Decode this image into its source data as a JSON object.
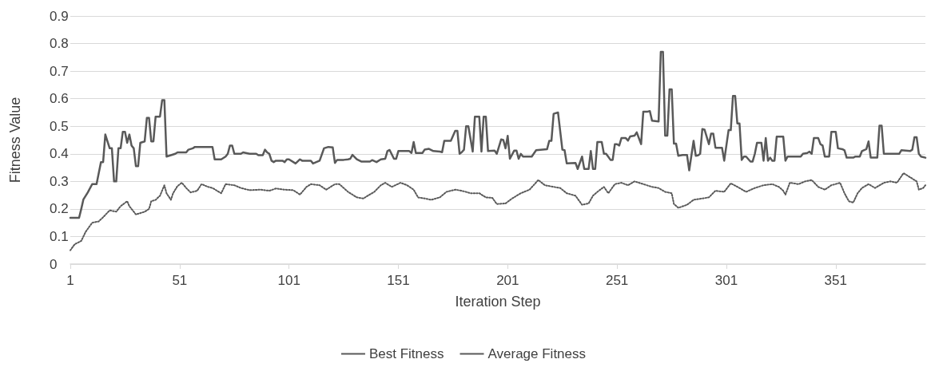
{
  "chart_data": {
    "type": "line",
    "xlabel": "Iteration Step",
    "ylabel": "Fitness Value",
    "xlim": [
      1,
      392
    ],
    "xticks": [
      1,
      51,
      101,
      151,
      201,
      251,
      301,
      351
    ],
    "ylim": [
      0,
      0.9
    ],
    "yticks": [
      0,
      0.1,
      0.2,
      0.3,
      0.4,
      0.5,
      0.6,
      0.7,
      0.8,
      0.9
    ],
    "grid": "y",
    "legend": "bottom",
    "marker": "none",
    "series": [
      {
        "name": "Best Fitness",
        "color": "#595959",
        "line_style": "solid",
        "x": [
          1,
          5,
          6,
          7,
          9,
          11,
          13,
          15,
          16,
          17,
          19,
          20,
          21,
          22,
          23,
          24,
          25,
          26,
          27,
          28,
          29,
          30,
          31,
          32,
          33,
          35,
          36,
          37,
          38,
          39,
          40,
          42,
          43,
          44,
          45,
          47,
          49,
          50,
          54,
          55,
          57,
          58,
          66,
          67,
          70,
          72,
          73,
          74,
          75,
          76,
          79,
          80,
          83,
          86,
          87,
          89,
          90,
          91,
          92,
          93,
          94,
          95,
          98,
          99,
          100,
          101,
          104,
          106,
          107,
          111,
          112,
          115,
          117,
          119,
          121,
          122,
          123,
          126,
          128,
          129,
          130,
          132,
          134,
          138,
          139,
          141,
          143,
          145,
          146,
          147,
          149,
          150,
          151,
          156,
          157,
          158,
          159,
          162,
          163,
          165,
          167,
          170,
          171,
          172,
          175,
          177,
          178,
          179,
          180,
          181,
          182,
          183,
          185,
          186,
          188,
          189,
          190,
          191,
          192,
          195,
          196,
          198,
          199,
          200,
          201,
          202,
          204,
          205,
          206,
          207,
          208,
          212,
          214,
          219,
          220,
          221,
          222,
          224,
          226,
          227,
          228,
          232,
          233,
          235,
          236,
          238,
          239,
          240,
          241,
          242,
          244,
          245,
          246,
          248,
          249,
          250,
          251,
          252,
          253,
          255,
          256,
          257,
          259,
          260,
          262,
          263,
          265,
          266,
          267,
          270,
          271,
          272,
          273,
          274,
          275,
          276,
          277,
          278,
          279,
          281,
          283,
          284,
          286,
          287,
          288,
          289,
          290,
          291,
          293,
          294,
          295,
          296,
          299,
          300,
          302,
          303,
          304,
          305,
          306,
          307,
          308,
          309,
          310,
          312,
          313,
          314,
          315,
          317,
          318,
          319,
          320,
          321,
          322,
          323,
          324,
          327,
          328,
          329,
          335,
          336,
          338,
          339,
          340,
          341,
          343,
          344,
          345,
          346,
          348,
          349,
          351,
          352,
          354,
          355,
          356,
          359,
          360,
          362,
          363,
          365,
          366,
          367,
          370,
          371,
          372,
          373,
          380,
          381,
          385,
          386,
          387,
          388,
          389,
          390,
          392
        ],
        "values": [
          0.168,
          0.168,
          0.2,
          0.235,
          0.26,
          0.29,
          0.29,
          0.37,
          0.37,
          0.47,
          0.42,
          0.42,
          0.3,
          0.3,
          0.42,
          0.42,
          0.48,
          0.48,
          0.44,
          0.47,
          0.43,
          0.42,
          0.355,
          0.355,
          0.44,
          0.445,
          0.53,
          0.53,
          0.445,
          0.445,
          0.535,
          0.535,
          0.595,
          0.595,
          0.39,
          0.395,
          0.4,
          0.405,
          0.405,
          0.415,
          0.42,
          0.425,
          0.425,
          0.38,
          0.38,
          0.39,
          0.4,
          0.43,
          0.43,
          0.4,
          0.4,
          0.405,
          0.4,
          0.4,
          0.395,
          0.395,
          0.415,
          0.405,
          0.4,
          0.375,
          0.37,
          0.375,
          0.375,
          0.37,
          0.38,
          0.38,
          0.365,
          0.38,
          0.375,
          0.375,
          0.365,
          0.375,
          0.42,
          0.425,
          0.423,
          0.367,
          0.378,
          0.378,
          0.38,
          0.382,
          0.396,
          0.38,
          0.372,
          0.372,
          0.377,
          0.37,
          0.38,
          0.382,
          0.41,
          0.414,
          0.382,
          0.382,
          0.41,
          0.41,
          0.403,
          0.443,
          0.403,
          0.403,
          0.415,
          0.418,
          0.41,
          0.408,
          0.406,
          0.447,
          0.447,
          0.483,
          0.483,
          0.4,
          0.406,
          0.415,
          0.5,
          0.5,
          0.408,
          0.535,
          0.535,
          0.408,
          0.535,
          0.535,
          0.41,
          0.412,
          0.4,
          0.452,
          0.45,
          0.42,
          0.465,
          0.382,
          0.412,
          0.412,
          0.382,
          0.4,
          0.39,
          0.39,
          0.413,
          0.417,
          0.447,
          0.447,
          0.545,
          0.55,
          0.415,
          0.413,
          0.365,
          0.367,
          0.345,
          0.39,
          0.345,
          0.345,
          0.41,
          0.345,
          0.345,
          0.443,
          0.443,
          0.4,
          0.4,
          0.378,
          0.378,
          0.435,
          0.435,
          0.43,
          0.457,
          0.457,
          0.448,
          0.463,
          0.466,
          0.478,
          0.435,
          0.553,
          0.553,
          0.555,
          0.52,
          0.517,
          0.77,
          0.77,
          0.466,
          0.466,
          0.634,
          0.634,
          0.437,
          0.437,
          0.393,
          0.396,
          0.396,
          0.34,
          0.447,
          0.393,
          0.394,
          0.4,
          0.49,
          0.488,
          0.435,
          0.473,
          0.473,
          0.422,
          0.422,
          0.375,
          0.486,
          0.486,
          0.61,
          0.61,
          0.51,
          0.51,
          0.378,
          0.39,
          0.39,
          0.372,
          0.372,
          0.4,
          0.44,
          0.44,
          0.375,
          0.457,
          0.375,
          0.386,
          0.375,
          0.375,
          0.462,
          0.462,
          0.375,
          0.39,
          0.39,
          0.4,
          0.403,
          0.408,
          0.4,
          0.457,
          0.457,
          0.435,
          0.43,
          0.39,
          0.39,
          0.48,
          0.48,
          0.42,
          0.417,
          0.413,
          0.386,
          0.386,
          0.39,
          0.39,
          0.41,
          0.417,
          0.445,
          0.386,
          0.386,
          0.502,
          0.502,
          0.4,
          0.4,
          0.413,
          0.41,
          0.415,
          0.46,
          0.46,
          0.4,
          0.39,
          0.386
        ]
      },
      {
        "name": "Average Fitness",
        "color": "#595959",
        "line_style": "dotted",
        "x": [
          1,
          3,
          6,
          8,
          11,
          14,
          16,
          19,
          22,
          24,
          27,
          28,
          31,
          35,
          37,
          38,
          40,
          42,
          44,
          45,
          47,
          48,
          50,
          52,
          54,
          56,
          59,
          61,
          64,
          66,
          70,
          72,
          76,
          79,
          83,
          88,
          92,
          95,
          99,
          103,
          106,
          109,
          111,
          115,
          118,
          122,
          124,
          128,
          132,
          135,
          137,
          140,
          143,
          145,
          148,
          152,
          155,
          158,
          160,
          163,
          166,
          170,
          173,
          177,
          180,
          184,
          188,
          191,
          194,
          196,
          200,
          203,
          207,
          211,
          215,
          218,
          222,
          225,
          228,
          232,
          235,
          238,
          240,
          242,
          245,
          247,
          250,
          253,
          256,
          259,
          263,
          267,
          270,
          273,
          276,
          277,
          279,
          283,
          286,
          290,
          293,
          296,
          300,
          303,
          307,
          310,
          314,
          318,
          322,
          325,
          327,
          328,
          330,
          334,
          337,
          340,
          343,
          346,
          349,
          353,
          355,
          357,
          359,
          361,
          363,
          366,
          369,
          373,
          376,
          379,
          382,
          385,
          388,
          389,
          391,
          392
        ],
        "values": [
          0.05,
          0.072,
          0.084,
          0.117,
          0.15,
          0.155,
          0.17,
          0.195,
          0.19,
          0.21,
          0.228,
          0.21,
          0.18,
          0.19,
          0.2,
          0.228,
          0.233,
          0.248,
          0.286,
          0.257,
          0.233,
          0.257,
          0.283,
          0.295,
          0.276,
          0.26,
          0.266,
          0.29,
          0.28,
          0.276,
          0.257,
          0.29,
          0.286,
          0.276,
          0.268,
          0.27,
          0.266,
          0.274,
          0.27,
          0.268,
          0.252,
          0.28,
          0.29,
          0.286,
          0.27,
          0.29,
          0.29,
          0.262,
          0.242,
          0.238,
          0.248,
          0.262,
          0.286,
          0.295,
          0.28,
          0.295,
          0.286,
          0.27,
          0.242,
          0.238,
          0.233,
          0.242,
          0.262,
          0.27,
          0.266,
          0.257,
          0.257,
          0.242,
          0.24,
          0.218,
          0.22,
          0.238,
          0.257,
          0.27,
          0.305,
          0.286,
          0.28,
          0.276,
          0.257,
          0.248,
          0.215,
          0.22,
          0.248,
          0.262,
          0.28,
          0.257,
          0.29,
          0.295,
          0.286,
          0.3,
          0.29,
          0.28,
          0.276,
          0.262,
          0.257,
          0.218,
          0.204,
          0.215,
          0.233,
          0.238,
          0.242,
          0.266,
          0.262,
          0.293,
          0.276,
          0.262,
          0.276,
          0.286,
          0.29,
          0.28,
          0.266,
          0.252,
          0.295,
          0.29,
          0.3,
          0.305,
          0.28,
          0.27,
          0.286,
          0.295,
          0.257,
          0.228,
          0.223,
          0.257,
          0.276,
          0.29,
          0.276,
          0.295,
          0.3,
          0.295,
          0.33,
          0.315,
          0.3,
          0.27,
          0.276,
          0.286
        ]
      }
    ]
  }
}
